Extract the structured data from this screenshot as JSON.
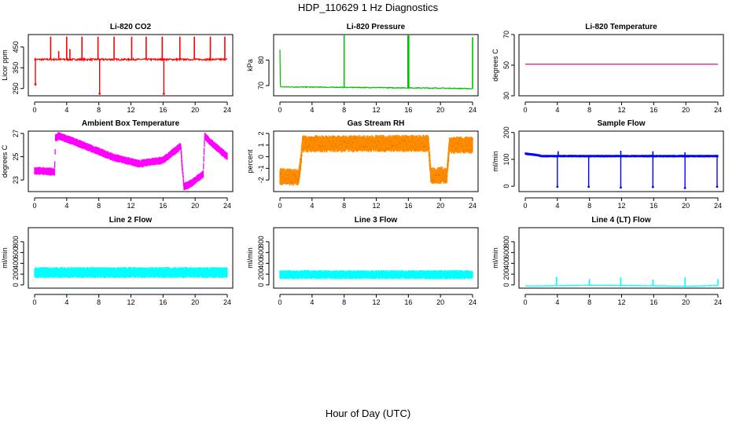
{
  "figure": {
    "title": "HDP_110629  1 Hz Diagnostics",
    "xlabel": "Hour of Day (UTC)"
  },
  "chart_data": [
    {
      "id": "co2",
      "type": "line",
      "title": "Li-820 CO2",
      "ylabel": "Licor ppm",
      "color": "#ff0000",
      "xlim": [
        0,
        24
      ],
      "ylim": [
        215,
        510
      ],
      "xticks": [
        0,
        4,
        8,
        12,
        16,
        20,
        24
      ],
      "yticks": [
        250,
        350,
        450
      ],
      "baseline": 390,
      "noise": 4,
      "style": "line",
      "spikes": [
        {
          "x": 2.0,
          "y": 500
        },
        {
          "x": 3.0,
          "y": 430
        },
        {
          "x": 4.0,
          "y": 500
        },
        {
          "x": 4.4,
          "y": 440
        },
        {
          "x": 5.9,
          "y": 500
        },
        {
          "x": 7.9,
          "y": 500
        },
        {
          "x": 9.9,
          "y": 500
        },
        {
          "x": 12.1,
          "y": 500
        },
        {
          "x": 13.9,
          "y": 500
        },
        {
          "x": 15.9,
          "y": 500
        },
        {
          "x": 18.1,
          "y": 500
        },
        {
          "x": 19.9,
          "y": 500
        },
        {
          "x": 21.9,
          "y": 500
        },
        {
          "x": 23.7,
          "y": 500
        }
      ],
      "dips": [
        {
          "x": 0.1,
          "y": 270
        },
        {
          "x": 8.1,
          "y": 225
        },
        {
          "x": 16.1,
          "y": 225
        }
      ]
    },
    {
      "id": "pressure",
      "type": "line",
      "title": "Li-820 Pressure",
      "ylabel": "kPa",
      "color": "#00c000",
      "xlim": [
        0,
        24
      ],
      "ylim": [
        66,
        90
      ],
      "xticks": [
        0,
        4,
        8,
        12,
        16,
        20,
        24
      ],
      "yticks": [
        70,
        80
      ],
      "points": [
        [
          0,
          84
        ],
        [
          0.02,
          71
        ],
        [
          0.1,
          69.5
        ],
        [
          4,
          69.4
        ],
        [
          8,
          69.3
        ],
        [
          12,
          69.2
        ],
        [
          16,
          69.1
        ],
        [
          20,
          69.0
        ],
        [
          23.9,
          68.8
        ]
      ],
      "noise": 0.15,
      "style": "line",
      "spikes": [
        {
          "x": 8.0,
          "y": 90
        },
        {
          "x": 15.95,
          "y": 90
        },
        {
          "x": 16.05,
          "y": 90
        },
        {
          "x": 24.0,
          "y": 89
        }
      ]
    },
    {
      "id": "temperature",
      "type": "line",
      "title": "Li-820 Temperature",
      "ylabel": "degrees C",
      "color": "#cc0066",
      "xlim": [
        0,
        24
      ],
      "ylim": [
        30,
        70
      ],
      "xticks": [
        0,
        4,
        8,
        12,
        16,
        20,
        24
      ],
      "yticks": [
        30,
        50,
        70
      ],
      "points": [
        [
          0,
          50.6
        ],
        [
          24,
          50.6
        ]
      ],
      "noise": 0,
      "style": "line"
    },
    {
      "id": "ambient",
      "type": "line",
      "title": "Ambient Box Temperature",
      "ylabel": "degrees C",
      "color": "#ff00ff",
      "xlim": [
        0,
        24
      ],
      "ylim": [
        22,
        27.2
      ],
      "xticks": [
        0,
        4,
        8,
        12,
        16,
        20,
        24
      ],
      "yticks": [
        23,
        25,
        27
      ],
      "points": [
        [
          0,
          23.8
        ],
        [
          2.5,
          23.7
        ],
        [
          2.6,
          26.6
        ],
        [
          3,
          26.8
        ],
        [
          6,
          26.0
        ],
        [
          10,
          24.9
        ],
        [
          13,
          24.4
        ],
        [
          16,
          24.7
        ],
        [
          18.2,
          25.9
        ],
        [
          18.6,
          22.4
        ],
        [
          19.5,
          22.7
        ],
        [
          21,
          23.5
        ],
        [
          21.2,
          26.8
        ],
        [
          22,
          26.2
        ],
        [
          24,
          25.0
        ]
      ],
      "noise": 0.35,
      "style": "band"
    },
    {
      "id": "rh",
      "type": "line",
      "title": "Gas Stream RH",
      "ylabel": "percent",
      "color": "#ff8c00",
      "color2": "#7a5a00",
      "xlim": [
        0,
        24
      ],
      "ylim": [
        -3,
        2.2
      ],
      "xticks": [
        0,
        4,
        8,
        12,
        16,
        20,
        24
      ],
      "yticks": [
        -2,
        -1,
        0,
        1,
        2
      ],
      "points": [
        [
          0,
          -1.7
        ],
        [
          2.3,
          -1.8
        ],
        [
          2.6,
          -0.5
        ],
        [
          2.8,
          1.1
        ],
        [
          18.5,
          1.15
        ],
        [
          18.8,
          -1.6
        ],
        [
          20.8,
          -1.6
        ],
        [
          21.1,
          1.0
        ],
        [
          24,
          1.0
        ]
      ],
      "noise": 0.75,
      "style": "band"
    },
    {
      "id": "sample",
      "type": "line",
      "title": "Sample Flow",
      "ylabel": "ml/min",
      "color": "#0000ff",
      "xlim": [
        0,
        24
      ],
      "ylim": [
        -20,
        205
      ],
      "xticks": [
        0,
        4,
        8,
        12,
        16,
        20,
        24
      ],
      "yticks": [
        0,
        100,
        200
      ],
      "points": [
        [
          0,
          121
        ],
        [
          1.5,
          116
        ],
        [
          2,
          112
        ],
        [
          24,
          112
        ]
      ],
      "noise": 5,
      "style": "band",
      "dips": [
        {
          "x": 4.0,
          "y": -2
        },
        {
          "x": 7.9,
          "y": -2
        },
        {
          "x": 11.9,
          "y": -5
        },
        {
          "x": 15.9,
          "y": -3
        },
        {
          "x": 19.9,
          "y": -7
        },
        {
          "x": 23.9,
          "y": -2
        }
      ],
      "spikes": [
        {
          "x": 4.1,
          "y": 130
        },
        {
          "x": 11.9,
          "y": 132
        },
        {
          "x": 15.9,
          "y": 130
        },
        {
          "x": 19.9,
          "y": 126
        }
      ]
    },
    {
      "id": "line2",
      "type": "line",
      "title": "Line 2 Flow",
      "ylabel": "ml/min",
      "color": "#00ffff",
      "xlim": [
        0,
        24
      ],
      "ylim": [
        -60,
        1060
      ],
      "xticks": [
        0,
        4,
        8,
        12,
        16,
        20,
        24
      ],
      "yticks": [
        0,
        200,
        400,
        600,
        800
      ],
      "points": [
        [
          0,
          230
        ],
        [
          24,
          230
        ]
      ],
      "noise": 105,
      "style": "band",
      "gaps": [
        3.8,
        8.0,
        12.1,
        16.1,
        19.9
      ]
    },
    {
      "id": "line3",
      "type": "line",
      "title": "Line 3 Flow",
      "ylabel": "ml/min",
      "color": "#00ffff",
      "xlim": [
        0,
        24
      ],
      "ylim": [
        -60,
        1060
      ],
      "xticks": [
        0,
        4,
        8,
        12,
        16,
        20,
        24
      ],
      "yticks": [
        0,
        200,
        400,
        600,
        800
      ],
      "points": [
        [
          0,
          190
        ],
        [
          24,
          190
        ]
      ],
      "noise": 85,
      "style": "band",
      "gaps": [
        3.9,
        8.0,
        12.1,
        15.9,
        20.1
      ]
    },
    {
      "id": "line4",
      "type": "line",
      "title": "Line 4 (LT) Flow",
      "ylabel": "ml/min",
      "color": "#00ffff",
      "xlim": [
        0,
        24
      ],
      "ylim": [
        -60,
        1060
      ],
      "xticks": [
        0,
        4,
        8,
        12,
        16,
        20,
        24
      ],
      "yticks": [
        0,
        200,
        400,
        600,
        800
      ],
      "points": [
        [
          0,
          -20
        ],
        [
          4,
          -15
        ],
        [
          8,
          -5
        ],
        [
          12,
          -10
        ],
        [
          16,
          -15
        ],
        [
          20,
          -25
        ],
        [
          24,
          -10
        ]
      ],
      "noise": 4,
      "style": "line",
      "spikes": [
        {
          "x": 3.9,
          "y": 150
        },
        {
          "x": 8.0,
          "y": 110
        },
        {
          "x": 11.9,
          "y": 140
        },
        {
          "x": 15.9,
          "y": 100
        },
        {
          "x": 19.9,
          "y": 140
        },
        {
          "x": 24.0,
          "y": 110
        }
      ]
    }
  ]
}
